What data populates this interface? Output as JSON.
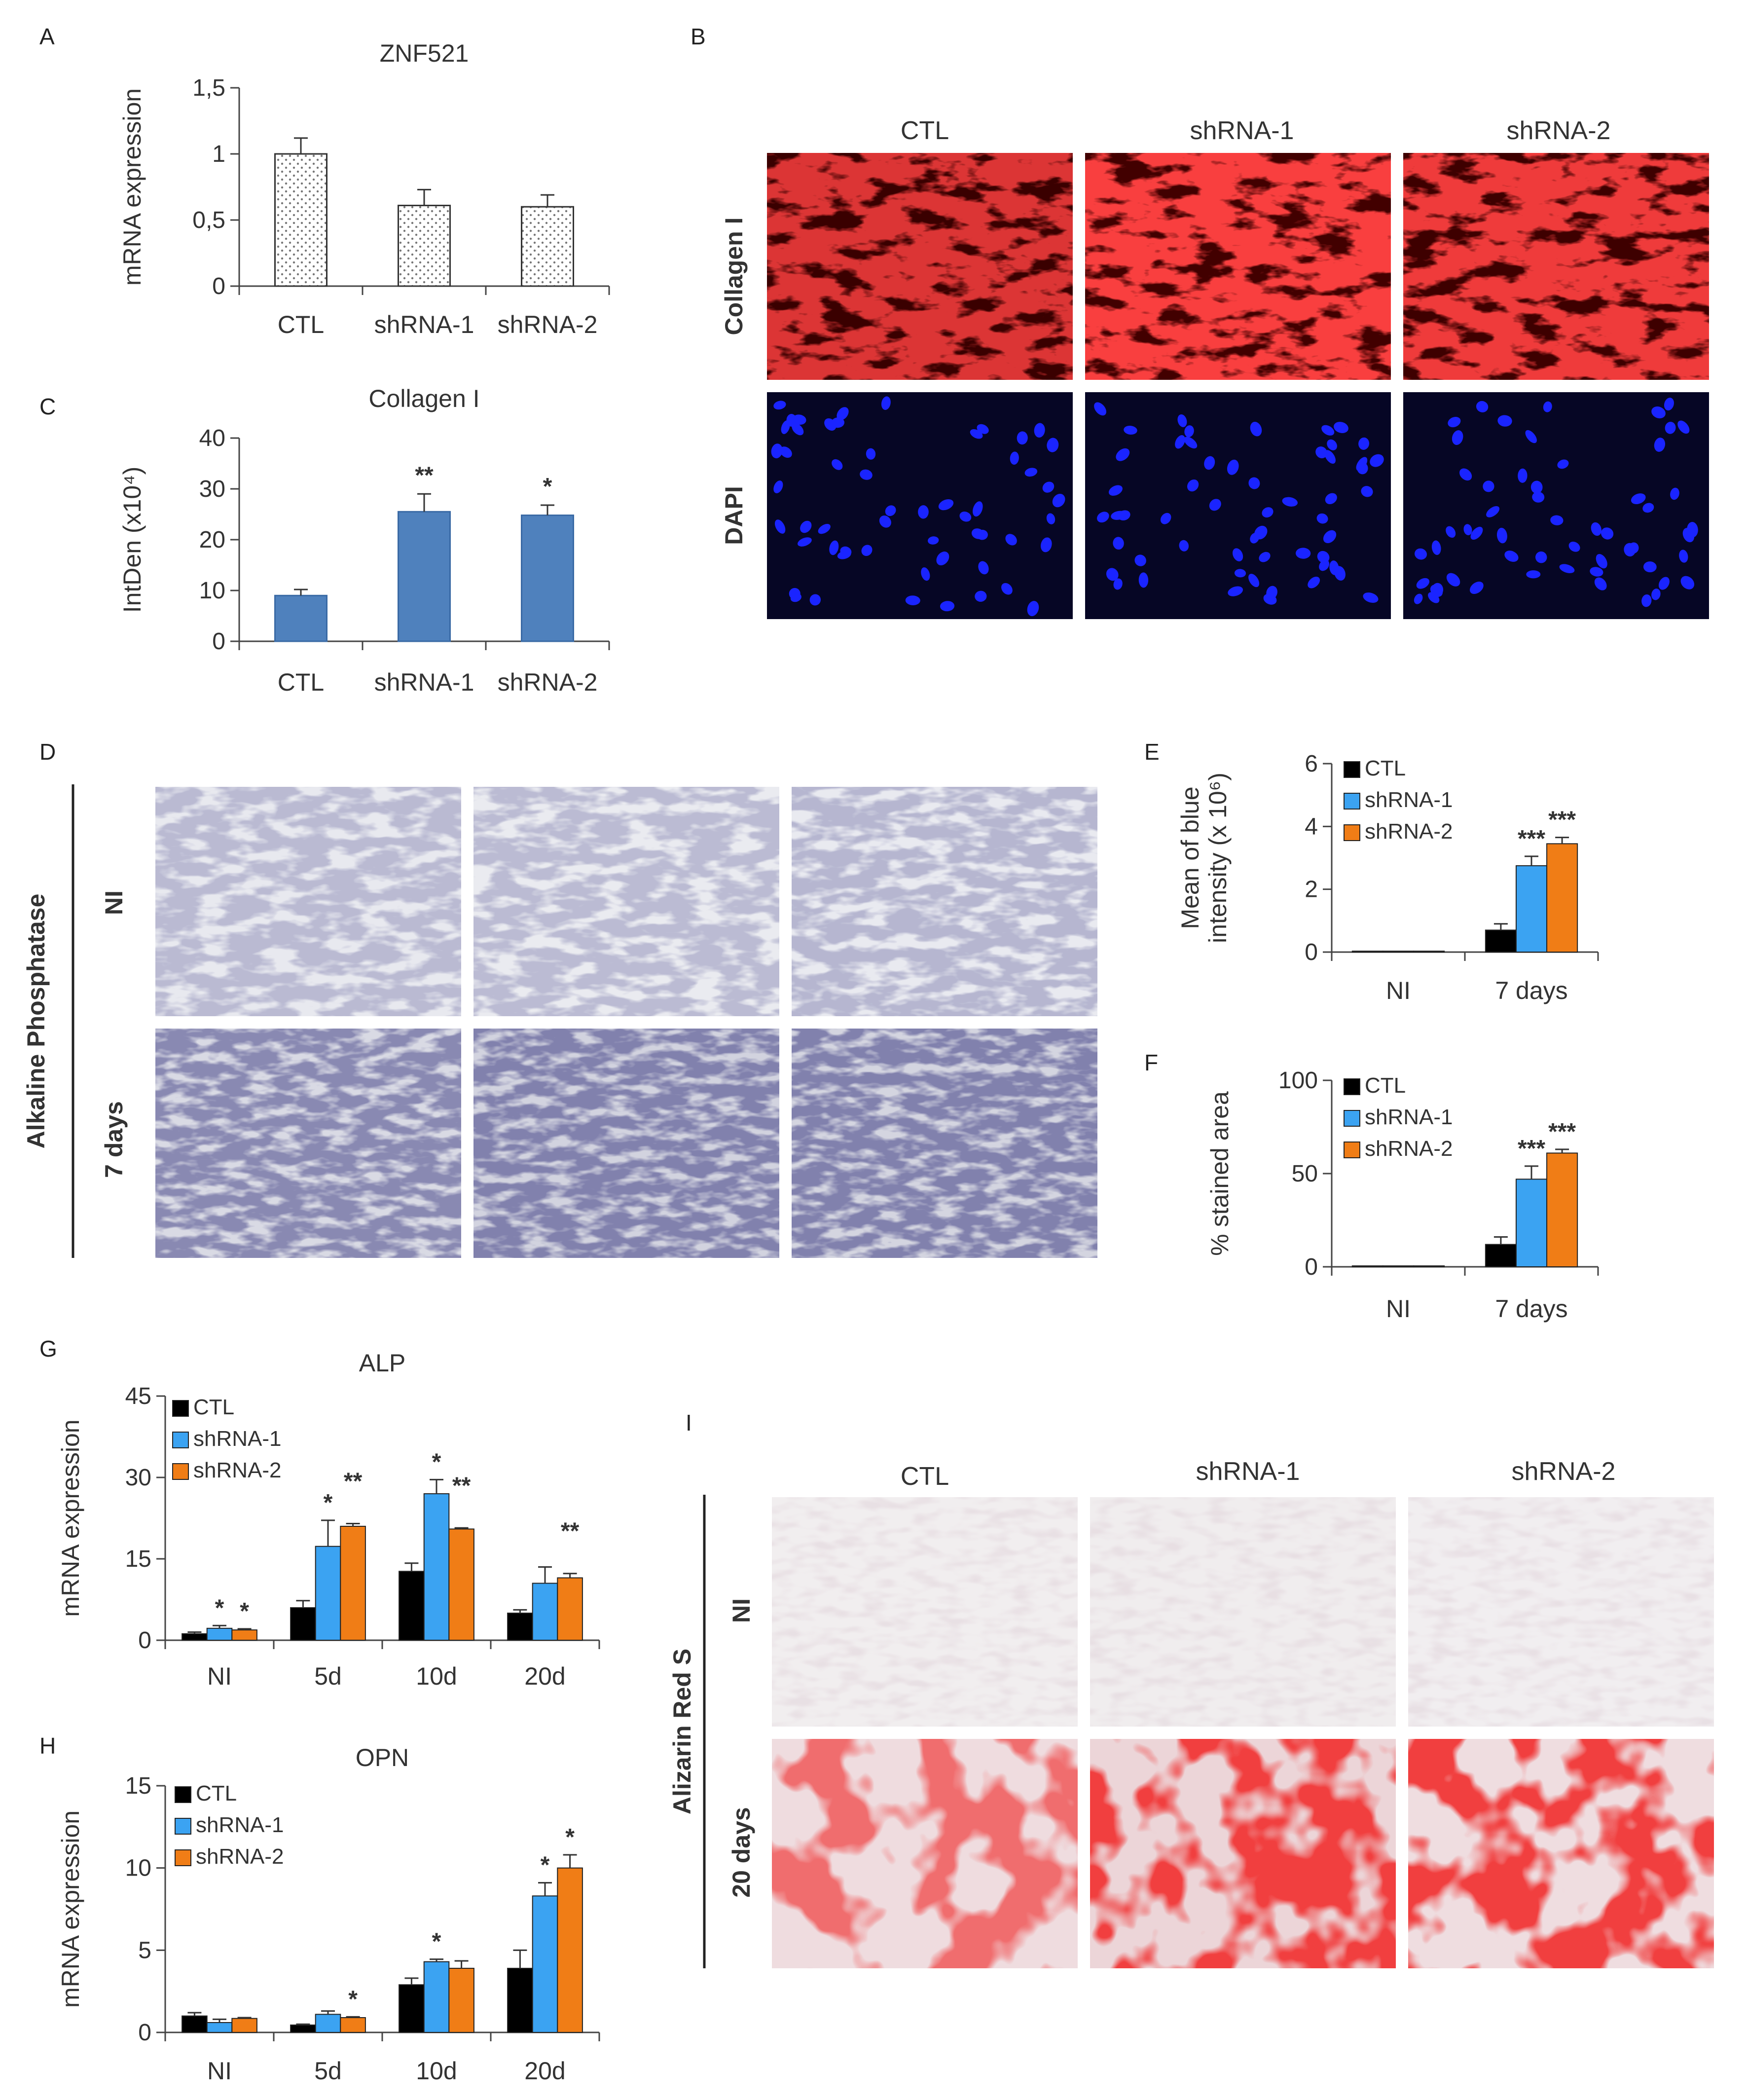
{
  "colors": {
    "ctl": "#000000",
    "shrna1": "#3ba3f2",
    "shrna2": "#f07d16",
    "blue_bar": "#4f81bd"
  },
  "panels": {
    "A": {
      "label": "A"
    },
    "B": {
      "label": "B",
      "columns": [
        "CTL",
        "shRNA-1",
        "shRNA-2"
      ],
      "rows": [
        "Collagen I",
        "DAPI"
      ]
    },
    "C": {
      "label": "C"
    },
    "D": {
      "label": "D",
      "row_group": "Alkaline  Phosphatase",
      "rows": [
        "NI",
        "7 days"
      ]
    },
    "E": {
      "label": "E"
    },
    "F": {
      "label": "F"
    },
    "G": {
      "label": "G"
    },
    "H": {
      "label": "H"
    },
    "I": {
      "label": "I",
      "columns": [
        "CTL",
        "shRNA-1",
        "shRNA-2"
      ],
      "row_group": "Alizarin Red S",
      "rows": [
        "NI",
        "20 days"
      ]
    }
  },
  "chart_data": [
    {
      "id": "A",
      "type": "bar",
      "title": "ZNF521",
      "ylabel": "mRNA expression",
      "categories": [
        "CTL",
        "shRNA-1",
        "shRNA-2"
      ],
      "values": [
        1.0,
        0.61,
        0.6
      ],
      "errors": [
        0.12,
        0.12,
        0.09
      ],
      "ylim": [
        0,
        1.5
      ],
      "yticks": [
        "0",
        "0,5",
        "1",
        "1,5"
      ],
      "yticks_values": [
        0,
        0.5,
        1,
        1.5
      ],
      "pattern": "dotted"
    },
    {
      "id": "C",
      "type": "bar",
      "title": "Collagen I",
      "ylabel": "IntDen (x10⁴)",
      "categories": [
        "CTL",
        "shRNA-1",
        "shRNA-2"
      ],
      "values": [
        9,
        25.5,
        24.8
      ],
      "errors": [
        1.2,
        3.5,
        2.0
      ],
      "significance": [
        "",
        "**",
        "*"
      ],
      "ylim": [
        0,
        40
      ],
      "yticks": [
        "0",
        "10",
        "20",
        "30",
        "40"
      ],
      "yticks_values": [
        0,
        10,
        20,
        30,
        40
      ]
    },
    {
      "id": "E",
      "type": "bar",
      "ylabel": "Mean of blue intensity (x 10⁶)",
      "categories": [
        "NI",
        "7 days"
      ],
      "series": [
        {
          "name": "CTL",
          "values": [
            0.03,
            0.7
          ],
          "errors": [
            0,
            0.2
          ],
          "sig": [
            "",
            ""
          ]
        },
        {
          "name": "shRNA-1",
          "values": [
            0.03,
            2.75
          ],
          "errors": [
            0,
            0.3
          ],
          "sig": [
            "",
            "***"
          ]
        },
        {
          "name": "shRNA-2",
          "values": [
            0.03,
            3.45
          ],
          "errors": [
            0,
            0.2
          ],
          "sig": [
            "",
            "***"
          ]
        }
      ],
      "ylim": [
        0,
        6
      ],
      "yticks": [
        "0",
        "2",
        "4",
        "6"
      ],
      "yticks_values": [
        0,
        2,
        4,
        6
      ]
    },
    {
      "id": "F",
      "type": "bar",
      "ylabel": "% stained area",
      "categories": [
        "NI",
        "7 days"
      ],
      "series": [
        {
          "name": "CTL",
          "values": [
            0.5,
            12
          ],
          "errors": [
            0,
            4
          ],
          "sig": [
            "",
            ""
          ]
        },
        {
          "name": "shRNA-1",
          "values": [
            0.5,
            47
          ],
          "errors": [
            0,
            7
          ],
          "sig": [
            "",
            "***"
          ]
        },
        {
          "name": "shRNA-2",
          "values": [
            0.5,
            61
          ],
          "errors": [
            0,
            2
          ],
          "sig": [
            "",
            "***"
          ]
        }
      ],
      "ylim": [
        0,
        100
      ],
      "yticks": [
        "0",
        "50",
        "100"
      ],
      "yticks_values": [
        0,
        50,
        100
      ]
    },
    {
      "id": "G",
      "type": "bar",
      "title": "ALP",
      "ylabel": "mRNA expression",
      "categories": [
        "NI",
        "5d",
        "10d",
        "20d"
      ],
      "series": [
        {
          "name": "CTL",
          "values": [
            1.2,
            6.0,
            12.7,
            5.0
          ],
          "errors": [
            0.3,
            1.3,
            1.5,
            0.6
          ],
          "sig": [
            "",
            "",
            "",
            ""
          ]
        },
        {
          "name": "shRNA-1",
          "values": [
            2.2,
            17.3,
            27.0,
            10.5
          ],
          "errors": [
            0.5,
            4.8,
            2.6,
            3.0
          ],
          "sig": [
            "*",
            "*",
            "*",
            ""
          ]
        },
        {
          "name": "shRNA-2",
          "values": [
            1.9,
            21.0,
            20.5,
            11.5
          ],
          "errors": [
            0.2,
            0.5,
            0.2,
            0.8
          ],
          "sig": [
            "*",
            "**",
            "**",
            "**"
          ]
        }
      ],
      "ylim": [
        0,
        45
      ],
      "yticks": [
        "0",
        "15",
        "30",
        "45"
      ],
      "yticks_values": [
        0,
        15,
        30,
        45
      ]
    },
    {
      "id": "H",
      "type": "bar",
      "title": "OPN",
      "ylabel": "mRNA expression",
      "categories": [
        "NI",
        "5d",
        "10d",
        "20d"
      ],
      "series": [
        {
          "name": "CTL",
          "values": [
            1.0,
            0.45,
            2.9,
            3.9
          ],
          "errors": [
            0.2,
            0.05,
            0.4,
            1.1
          ],
          "sig": [
            "",
            "",
            "",
            ""
          ]
        },
        {
          "name": "shRNA-1",
          "values": [
            0.6,
            1.1,
            4.3,
            8.3
          ],
          "errors": [
            0.2,
            0.2,
            0.15,
            0.8
          ],
          "sig": [
            "",
            "",
            "*",
            "*"
          ]
        },
        {
          "name": "shRNA-2",
          "values": [
            0.85,
            0.9,
            3.9,
            10.0
          ],
          "errors": [
            0.05,
            0.05,
            0.45,
            0.8
          ],
          "sig": [
            "",
            "*",
            "",
            "*"
          ]
        }
      ],
      "ylim": [
        0,
        15
      ],
      "yticks": [
        "0",
        "5",
        "10",
        "15"
      ],
      "yticks_values": [
        0,
        5,
        10,
        15
      ]
    }
  ]
}
